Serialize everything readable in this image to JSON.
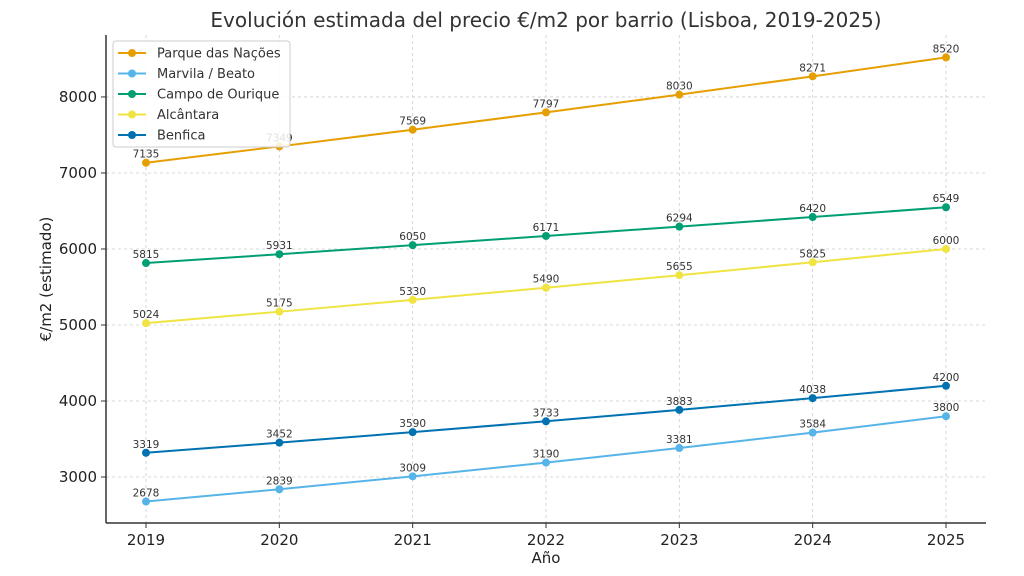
{
  "chart_data": {
    "type": "line",
    "title": "Evolución estimada del precio €/m2 por barrio (Lisboa, 2019-2025)",
    "xlabel": "Año",
    "ylabel": "€/m2 (estimado)",
    "x": [
      2019,
      2020,
      2021,
      2022,
      2023,
      2024,
      2025
    ],
    "x_tick_labels": [
      "2019",
      "2020",
      "2021",
      "2022",
      "2023",
      "2024",
      "2025"
    ],
    "y_ticks": [
      3000,
      4000,
      5000,
      6000,
      7000,
      8000
    ],
    "y_tick_labels": [
      "3000",
      "4000",
      "5000",
      "6000",
      "7000",
      "8000"
    ],
    "ylim": [
      2395,
      8815
    ],
    "xlim": [
      2018.7,
      2025.3
    ],
    "grid": true,
    "legend_position": "top-left",
    "series": [
      {
        "name": "Parque das Nações",
        "color": "#E69F00",
        "values": [
          7135,
          7349,
          7569,
          7797,
          8030,
          8271,
          8520
        ]
      },
      {
        "name": "Marvila / Beato",
        "color": "#56B4E9",
        "values": [
          2678,
          2839,
          3009,
          3190,
          3381,
          3584,
          3800
        ]
      },
      {
        "name": "Campo de Ourique",
        "color": "#009E73",
        "values": [
          5815,
          5931,
          6050,
          6171,
          6294,
          6420,
          6549
        ]
      },
      {
        "name": "Alcântara",
        "color": "#F0E442",
        "values": [
          5024,
          5175,
          5330,
          5490,
          5655,
          5825,
          6000
        ]
      },
      {
        "name": "Benfica",
        "color": "#0072B2",
        "values": [
          3319,
          3452,
          3590,
          3733,
          3883,
          4038,
          4200
        ]
      }
    ]
  }
}
